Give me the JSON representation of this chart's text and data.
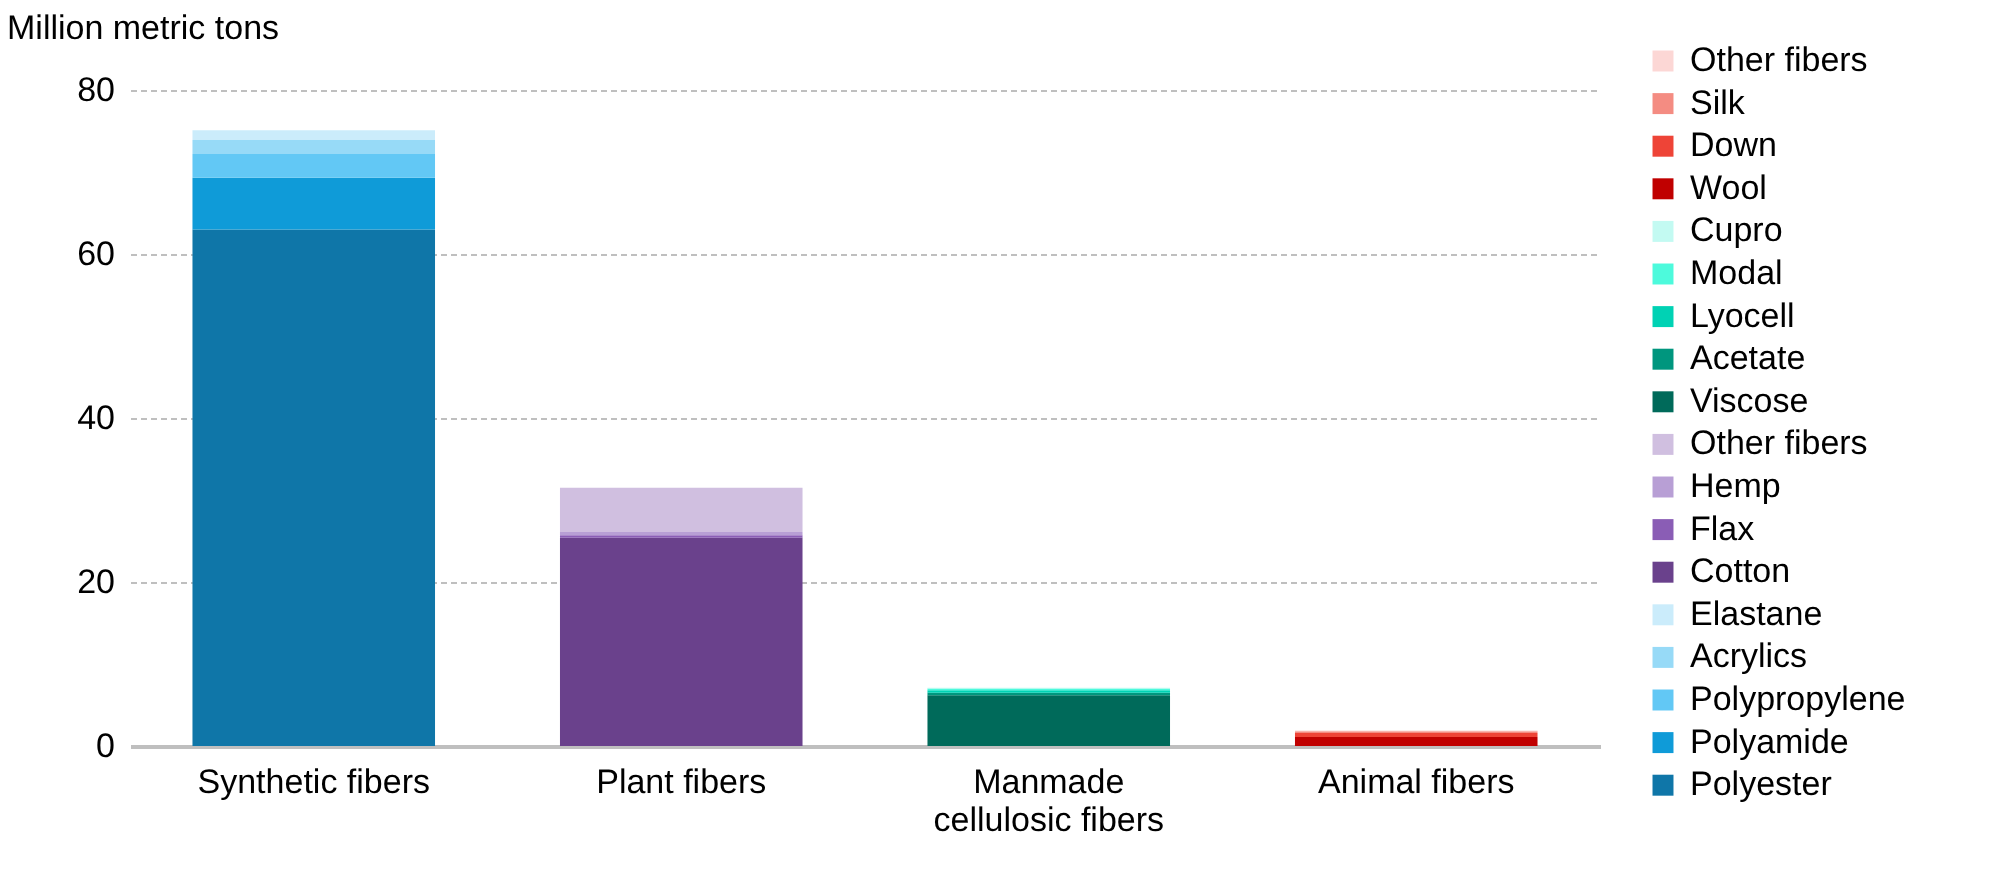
{
  "chart_data": {
    "type": "bar",
    "stacked": true,
    "ylabel": "Million metric tons",
    "categories": [
      "Synthetic fibers",
      "Plant fibers",
      "Manmade cellulosic fibers",
      "Animal fibers"
    ],
    "ylim": [
      0,
      80
    ],
    "yticks": [
      0,
      20,
      40,
      60,
      80
    ],
    "grid": "y",
    "legend": "right",
    "series": [
      {
        "name": "Polyester",
        "color": "#0f76a8",
        "values": [
          63,
          null,
          null,
          null
        ]
      },
      {
        "name": "Polyamide",
        "color": "#0f9bd8",
        "values": [
          6.3,
          null,
          null,
          null
        ]
      },
      {
        "name": "Polypropylene",
        "color": "#62c8f5",
        "values": [
          2.9,
          null,
          null,
          null
        ]
      },
      {
        "name": "Acrylics",
        "color": "#97daf7",
        "values": [
          1.7,
          null,
          null,
          null
        ]
      },
      {
        "name": "Elastane",
        "color": "#cbecfb",
        "values": [
          1.2,
          null,
          null,
          null
        ]
      },
      {
        "name": "Cotton",
        "color": "#6a418c",
        "values": [
          null,
          25.4,
          null,
          null
        ]
      },
      {
        "name": "Flax",
        "color": "#8a5db5",
        "values": [
          null,
          0.3,
          null,
          null
        ]
      },
      {
        "name": "Hemp",
        "color": "#b89fd5",
        "values": [
          null,
          0.4,
          null,
          null
        ]
      },
      {
        "name": "Other fibers",
        "color": "#d0bfe0",
        "values": [
          null,
          5.4,
          null,
          null
        ]
      },
      {
        "name": "Viscose",
        "color": "#006a5a",
        "values": [
          null,
          null,
          6.2,
          null
        ]
      },
      {
        "name": "Acetate",
        "color": "#00967e",
        "values": [
          null,
          null,
          0.3,
          null
        ]
      },
      {
        "name": "Lyocell",
        "color": "#00d2b4",
        "values": [
          null,
          null,
          0.3,
          null
        ]
      },
      {
        "name": "Modal",
        "color": "#4dfadc",
        "values": [
          null,
          null,
          0.2,
          null
        ]
      },
      {
        "name": "Cupro",
        "color": "#c3faf2",
        "values": [
          null,
          null,
          0.1,
          null
        ]
      },
      {
        "name": "Wool",
        "color": "#c00000",
        "values": [
          null,
          null,
          null,
          1.1
        ]
      },
      {
        "name": "Down",
        "color": "#ee4437",
        "values": [
          null,
          null,
          null,
          0.5
        ]
      },
      {
        "name": "Silk",
        "color": "#f48c82",
        "values": [
          null,
          null,
          null,
          0.2
        ]
      },
      {
        "name": "Other fibers",
        "color": "#fcd7d5",
        "values": [
          null,
          null,
          null,
          0.1
        ]
      }
    ]
  }
}
